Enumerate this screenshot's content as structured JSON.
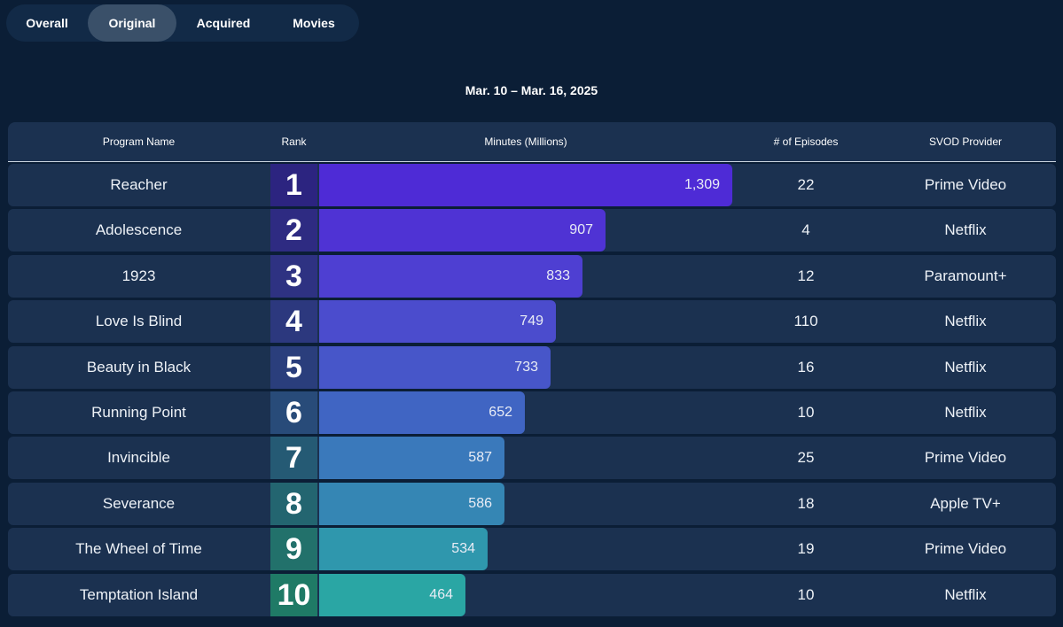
{
  "tabs": [
    {
      "label": "Overall",
      "active": false
    },
    {
      "label": "Original",
      "active": true
    },
    {
      "label": "Acquired",
      "active": false
    },
    {
      "label": "Movies",
      "active": false
    }
  ],
  "date_range": "Mar. 10 – Mar. 16, 2025",
  "headers": {
    "program": "Program Name",
    "rank": "Rank",
    "minutes": "Minutes (Millions)",
    "episodes": "# of Episodes",
    "provider": "SVOD Provider"
  },
  "chart_data": {
    "type": "bar",
    "orientation": "horizontal",
    "ylabel": "Minutes (Millions)",
    "xlim": [
      0,
      1309
    ],
    "categories": [
      "Reacher",
      "Adolescence",
      "1923",
      "Love Is Blind",
      "Beauty in Black",
      "Running Point",
      "Invincible",
      "Severance",
      "The Wheel of Time",
      "Temptation Island"
    ],
    "values": [
      1309,
      907,
      833,
      749,
      733,
      652,
      587,
      586,
      534,
      464
    ],
    "value_labels": [
      "1,309",
      "907",
      "833",
      "749",
      "733",
      "652",
      "587",
      "586",
      "534",
      "464"
    ],
    "ranks": [
      "1",
      "2",
      "3",
      "4",
      "5",
      "6",
      "7",
      "8",
      "9",
      "10"
    ],
    "episodes": [
      "22",
      "4",
      "12",
      "110",
      "16",
      "10",
      "25",
      "18",
      "19",
      "10"
    ],
    "providers": [
      "Prime Video",
      "Netflix",
      "Paramount+",
      "Netflix",
      "Netflix",
      "Netflix",
      "Prime Video",
      "Apple TV+",
      "Prime Video",
      "Netflix"
    ],
    "bar_colors": [
      "#4e2bd6",
      "#4f33d4",
      "#4e3fd2",
      "#4b4ccd",
      "#4756c9",
      "#4065c3",
      "#3a79bb",
      "#3586b4",
      "#2f97ad",
      "#2aa6a4"
    ],
    "rank_colors": [
      "#2c2480",
      "#2e2b82",
      "#2e3282",
      "#2c387e",
      "#2a3e7c",
      "#284b79",
      "#255a74",
      "#236570",
      "#22716b",
      "#1f7a66"
    ]
  }
}
